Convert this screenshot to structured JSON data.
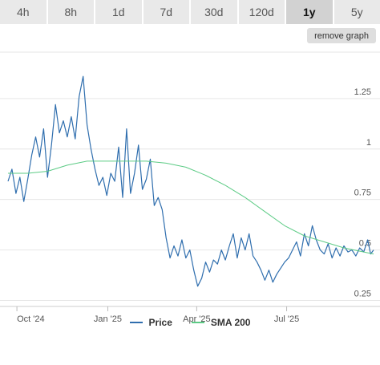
{
  "range_tabs": [
    {
      "label": "4h",
      "active": false
    },
    {
      "label": "8h",
      "active": false
    },
    {
      "label": "1d",
      "active": false
    },
    {
      "label": "7d",
      "active": false
    },
    {
      "label": "30d",
      "active": false
    },
    {
      "label": "120d",
      "active": false
    },
    {
      "label": "1y",
      "active": true
    },
    {
      "label": "5y",
      "active": false
    }
  ],
  "remove_graph_label": "remove graph",
  "colors": {
    "price": "#2f6eae",
    "sma": "#5ccb85",
    "grid": "#e6e6e6",
    "axis_text": "#555555"
  },
  "chart_data": {
    "type": "line",
    "title": "",
    "xlabel": "",
    "ylabel": "",
    "x_ticks": [
      {
        "label": "Oct '24",
        "date": "2024-10-01"
      },
      {
        "label": "Jan '25",
        "date": "2025-01-01"
      },
      {
        "label": "Apr '25",
        "date": "2025-04-01"
      },
      {
        "label": "Jul '25",
        "date": "2025-07-01"
      }
    ],
    "y_ticks": [
      "1.25",
      "1",
      "0.75",
      "0.5",
      "0.25"
    ],
    "y_tick_values": [
      1.25,
      1.0,
      0.75,
      0.5,
      0.25
    ],
    "xlim": [
      "2024-09-22",
      "2025-09-27"
    ],
    "ylim": [
      0.22,
      1.5
    ],
    "grid": true,
    "legend_position": "bottom",
    "series": [
      {
        "name": "Price",
        "color": "#2f6eae",
        "points": [
          [
            "2024-09-22",
            0.84
          ],
          [
            "2024-09-26",
            0.9
          ],
          [
            "2024-09-30",
            0.78
          ],
          [
            "2024-10-04",
            0.86
          ],
          [
            "2024-10-08",
            0.74
          ],
          [
            "2024-10-12",
            0.85
          ],
          [
            "2024-10-16",
            0.97
          ],
          [
            "2024-10-20",
            1.06
          ],
          [
            "2024-10-24",
            0.96
          ],
          [
            "2024-10-28",
            1.1
          ],
          [
            "2024-11-01",
            0.86
          ],
          [
            "2024-11-05",
            1.02
          ],
          [
            "2024-11-09",
            1.22
          ],
          [
            "2024-11-13",
            1.08
          ],
          [
            "2024-11-17",
            1.14
          ],
          [
            "2024-11-21",
            1.06
          ],
          [
            "2024-11-25",
            1.16
          ],
          [
            "2024-11-29",
            1.05
          ],
          [
            "2024-12-03",
            1.26
          ],
          [
            "2024-12-07",
            1.36
          ],
          [
            "2024-12-11",
            1.12
          ],
          [
            "2024-12-15",
            1.0
          ],
          [
            "2024-12-19",
            0.9
          ],
          [
            "2024-12-23",
            0.82
          ],
          [
            "2024-12-27",
            0.86
          ],
          [
            "2024-12-31",
            0.77
          ],
          [
            "2025-01-04",
            0.88
          ],
          [
            "2025-01-08",
            0.84
          ],
          [
            "2025-01-12",
            1.01
          ],
          [
            "2025-01-16",
            0.76
          ],
          [
            "2025-01-20",
            1.1
          ],
          [
            "2025-01-24",
            0.78
          ],
          [
            "2025-01-28",
            0.88
          ],
          [
            "2025-02-01",
            1.02
          ],
          [
            "2025-02-05",
            0.8
          ],
          [
            "2025-02-09",
            0.85
          ],
          [
            "2025-02-13",
            0.95
          ],
          [
            "2025-02-17",
            0.72
          ],
          [
            "2025-02-21",
            0.76
          ],
          [
            "2025-02-25",
            0.7
          ],
          [
            "2025-03-01",
            0.56
          ],
          [
            "2025-03-05",
            0.46
          ],
          [
            "2025-03-09",
            0.52
          ],
          [
            "2025-03-13",
            0.47
          ],
          [
            "2025-03-17",
            0.55
          ],
          [
            "2025-03-21",
            0.46
          ],
          [
            "2025-03-25",
            0.5
          ],
          [
            "2025-03-29",
            0.4
          ],
          [
            "2025-04-02",
            0.32
          ],
          [
            "2025-04-06",
            0.36
          ],
          [
            "2025-04-10",
            0.44
          ],
          [
            "2025-04-14",
            0.39
          ],
          [
            "2025-04-18",
            0.45
          ],
          [
            "2025-04-22",
            0.43
          ],
          [
            "2025-04-26",
            0.5
          ],
          [
            "2025-04-30",
            0.45
          ],
          [
            "2025-05-04",
            0.52
          ],
          [
            "2025-05-08",
            0.58
          ],
          [
            "2025-05-12",
            0.46
          ],
          [
            "2025-05-16",
            0.56
          ],
          [
            "2025-05-20",
            0.5
          ],
          [
            "2025-05-24",
            0.58
          ],
          [
            "2025-05-28",
            0.47
          ],
          [
            "2025-06-01",
            0.44
          ],
          [
            "2025-06-05",
            0.4
          ],
          [
            "2025-06-09",
            0.35
          ],
          [
            "2025-06-13",
            0.4
          ],
          [
            "2025-06-17",
            0.34
          ],
          [
            "2025-06-21",
            0.38
          ],
          [
            "2025-06-25",
            0.41
          ],
          [
            "2025-06-29",
            0.44
          ],
          [
            "2025-07-03",
            0.46
          ],
          [
            "2025-07-07",
            0.5
          ],
          [
            "2025-07-11",
            0.54
          ],
          [
            "2025-07-15",
            0.47
          ],
          [
            "2025-07-19",
            0.58
          ],
          [
            "2025-07-23",
            0.52
          ],
          [
            "2025-07-27",
            0.62
          ],
          [
            "2025-07-31",
            0.55
          ],
          [
            "2025-08-04",
            0.5
          ],
          [
            "2025-08-08",
            0.48
          ],
          [
            "2025-08-12",
            0.53
          ],
          [
            "2025-08-16",
            0.46
          ],
          [
            "2025-08-20",
            0.51
          ],
          [
            "2025-08-24",
            0.47
          ],
          [
            "2025-08-28",
            0.52
          ],
          [
            "2025-09-01",
            0.49
          ],
          [
            "2025-09-05",
            0.5
          ],
          [
            "2025-09-09",
            0.47
          ],
          [
            "2025-09-13",
            0.51
          ],
          [
            "2025-09-17",
            0.49
          ],
          [
            "2025-09-21",
            0.55
          ],
          [
            "2025-09-24",
            0.48
          ],
          [
            "2025-09-27",
            0.5
          ]
        ]
      },
      {
        "name": "SMA 200",
        "color": "#5ccb85",
        "points": [
          [
            "2024-09-22",
            0.88
          ],
          [
            "2024-10-12",
            0.88
          ],
          [
            "2024-11-01",
            0.89
          ],
          [
            "2024-11-21",
            0.92
          ],
          [
            "2024-12-11",
            0.94
          ],
          [
            "2024-12-31",
            0.94
          ],
          [
            "2025-01-20",
            0.94
          ],
          [
            "2025-02-09",
            0.94
          ],
          [
            "2025-03-01",
            0.93
          ],
          [
            "2025-03-21",
            0.91
          ],
          [
            "2025-04-10",
            0.87
          ],
          [
            "2025-04-30",
            0.82
          ],
          [
            "2025-05-20",
            0.76
          ],
          [
            "2025-06-09",
            0.69
          ],
          [
            "2025-06-29",
            0.62
          ],
          [
            "2025-07-19",
            0.57
          ],
          [
            "2025-08-08",
            0.54
          ],
          [
            "2025-08-28",
            0.51
          ],
          [
            "2025-09-17",
            0.49
          ],
          [
            "2025-09-27",
            0.48
          ]
        ]
      }
    ]
  }
}
